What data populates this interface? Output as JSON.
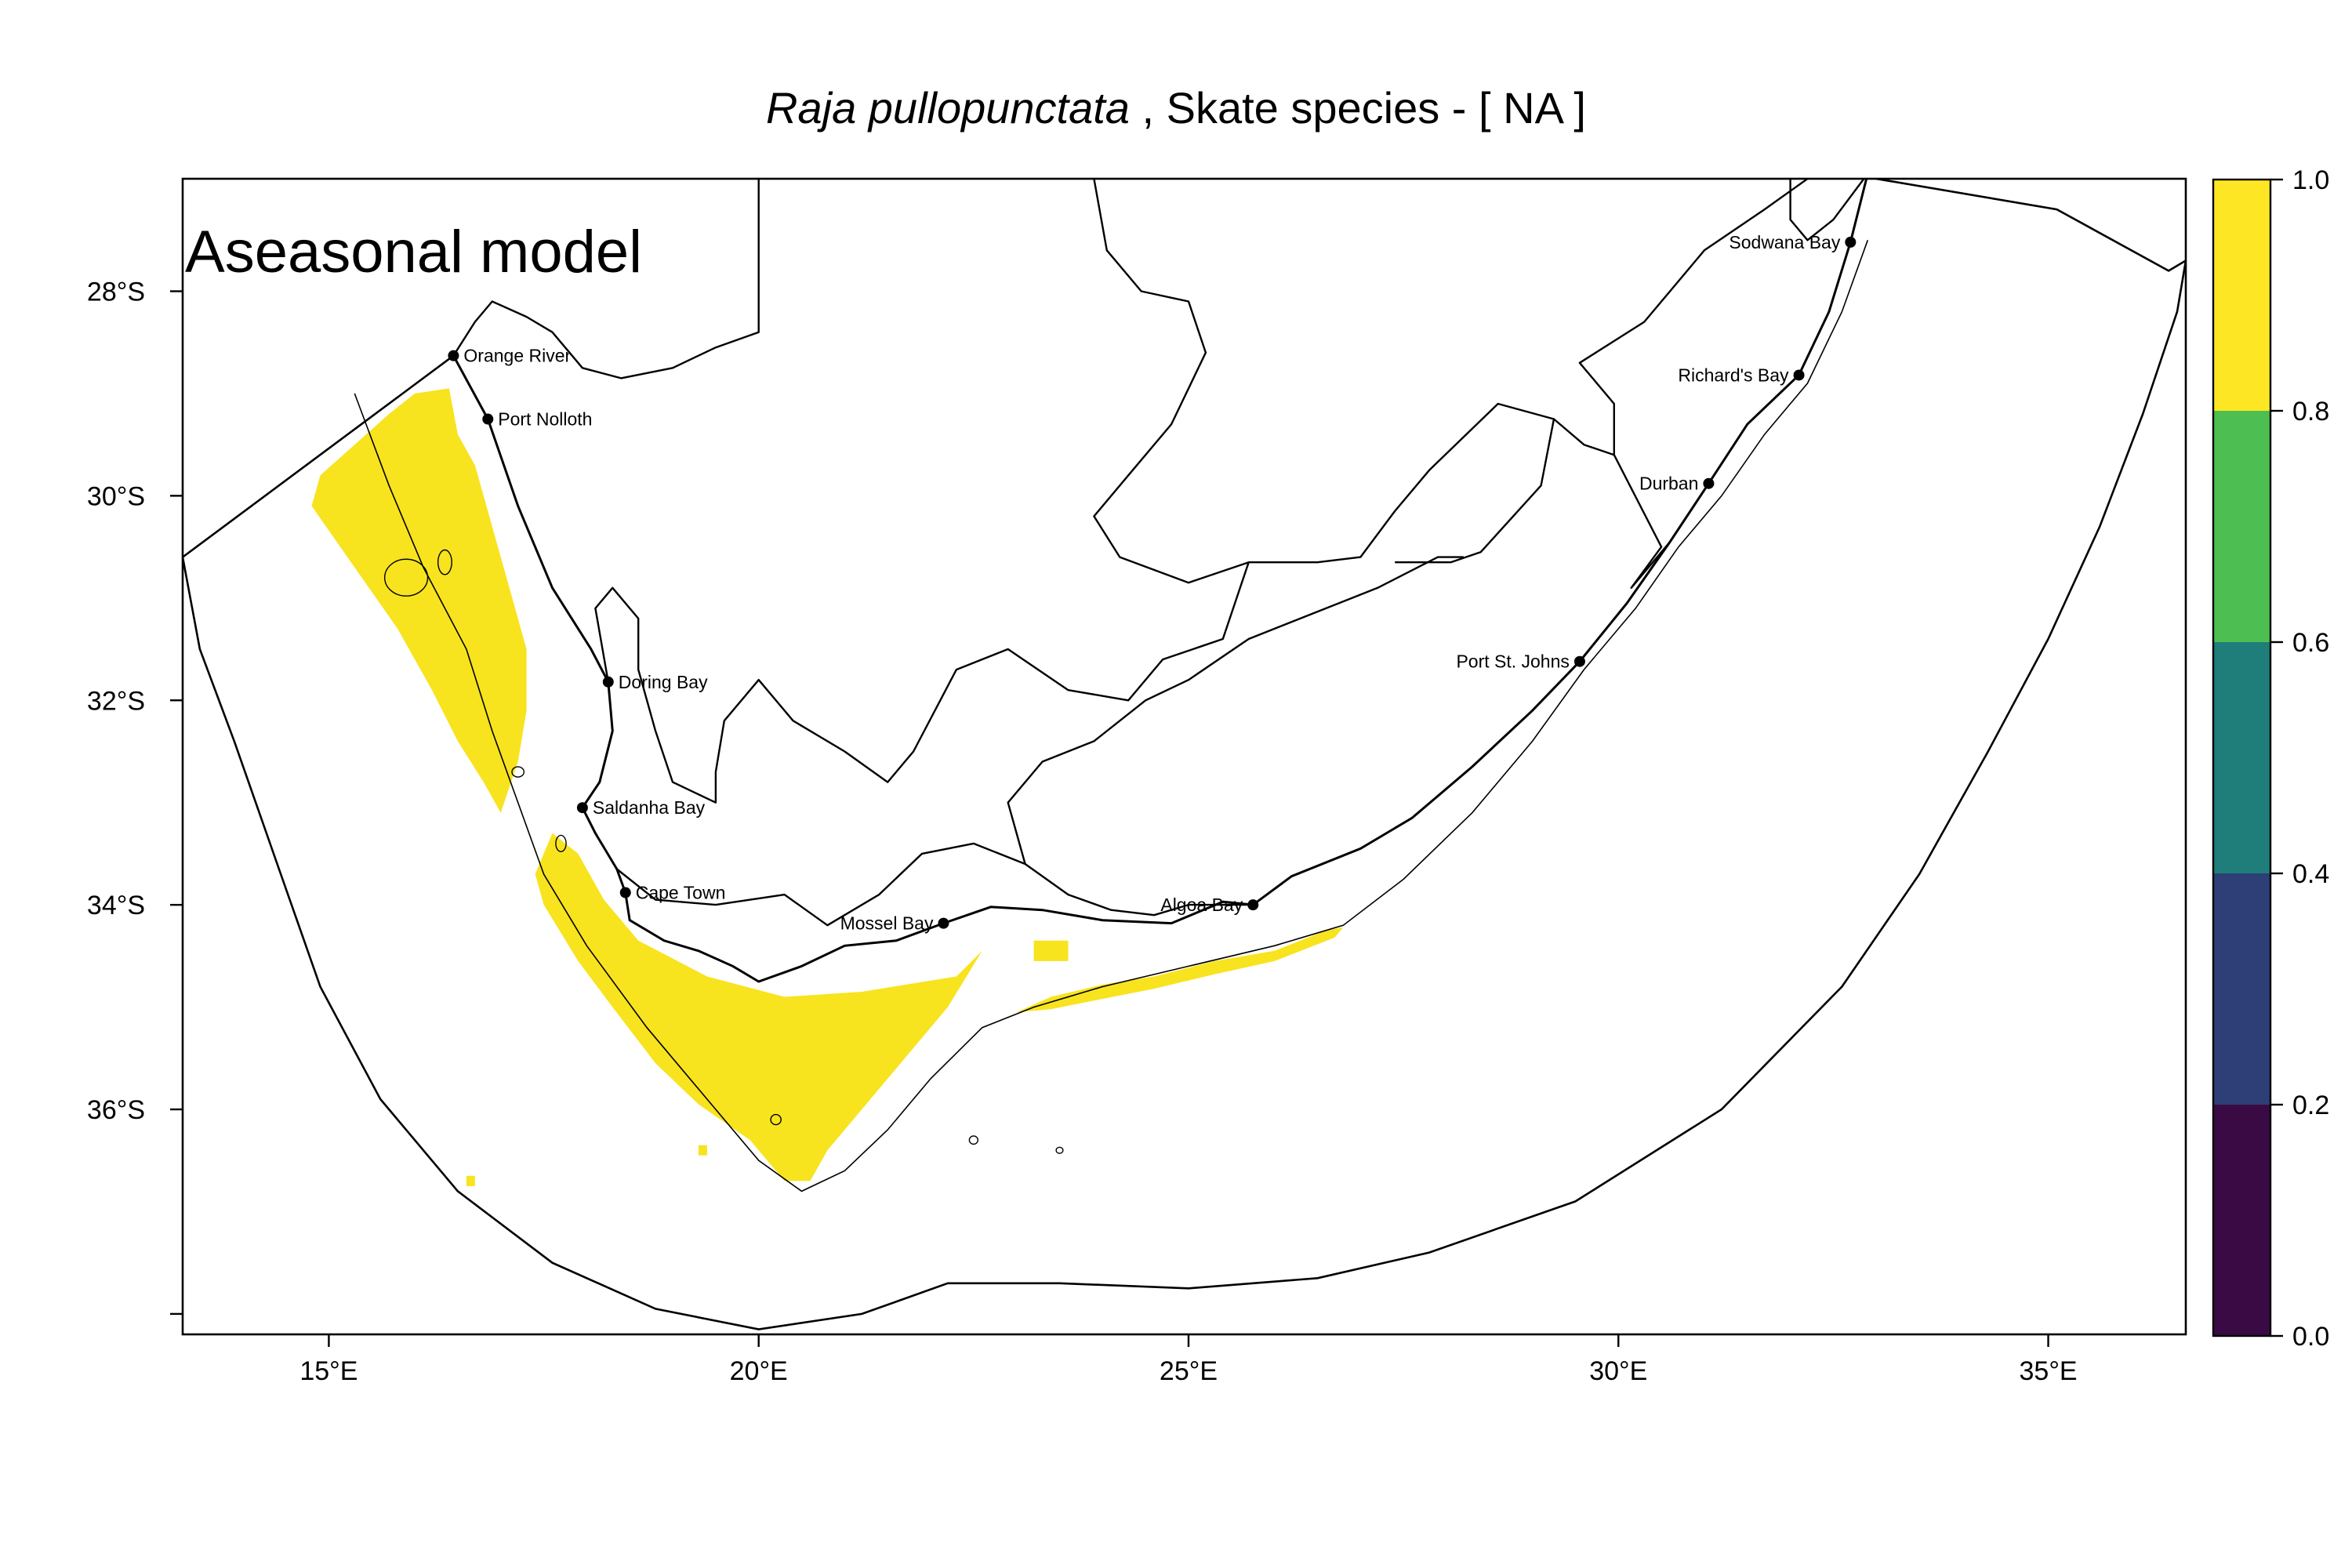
{
  "title": {
    "species": "Raja pullopunctata",
    "suffix": " , Skate species  - [ NA ]"
  },
  "overlay_label": "Aseasonal model",
  "map": {
    "lon_range": [
      13.3,
      36.6
    ],
    "lat_range": [
      -38.2,
      -26.9
    ],
    "x_ticks": [
      {
        "value": 15,
        "label": "15°E"
      },
      {
        "value": 20,
        "label": "20°E"
      },
      {
        "value": 25,
        "label": "25°E"
      },
      {
        "value": 30,
        "label": "30°E"
      },
      {
        "value": 35,
        "label": "35°E"
      }
    ],
    "y_ticks": [
      {
        "value": -28,
        "label": "28°S"
      },
      {
        "value": -30,
        "label": "30°S"
      },
      {
        "value": -32,
        "label": "32°S"
      },
      {
        "value": -34,
        "label": "34°S"
      },
      {
        "value": -36,
        "label": "36°S"
      },
      {
        "value": -38,
        "label": ""
      }
    ],
    "places": [
      {
        "name": "Orange River",
        "lon": 16.45,
        "lat": -28.63,
        "anchor": "start"
      },
      {
        "name": "Port Nolloth",
        "lon": 16.85,
        "lat": -29.25,
        "anchor": "start"
      },
      {
        "name": "Doring Bay",
        "lon": 18.25,
        "lat": -31.82,
        "anchor": "start"
      },
      {
        "name": "Saldanha Bay",
        "lon": 17.95,
        "lat": -33.05,
        "anchor": "start"
      },
      {
        "name": "Cape Town",
        "lon": 18.45,
        "lat": -33.88,
        "anchor": "start"
      },
      {
        "name": "Mossel Bay",
        "lon": 22.15,
        "lat": -34.18,
        "anchor": "end"
      },
      {
        "name": "Algoa Bay",
        "lon": 25.75,
        "lat": -34.0,
        "anchor": "end"
      },
      {
        "name": "Port St. Johns",
        "lon": 29.55,
        "lat": -31.62,
        "anchor": "end"
      },
      {
        "name": "Durban",
        "lon": 31.05,
        "lat": -29.88,
        "anchor": "end"
      },
      {
        "name": "Richard's Bay",
        "lon": 32.1,
        "lat": -28.82,
        "anchor": "end"
      },
      {
        "name": "Sodwana Bay",
        "lon": 32.7,
        "lat": -27.52,
        "anchor": "end"
      }
    ],
    "probability_regions": [
      {
        "name": "west-coast-shelf-patch",
        "value": 0.9,
        "polygon": [
          [
            16.0,
            -29.0
          ],
          [
            16.4,
            -28.95
          ],
          [
            16.5,
            -29.4
          ],
          [
            16.7,
            -29.7
          ],
          [
            16.9,
            -30.3
          ],
          [
            17.1,
            -30.9
          ],
          [
            17.3,
            -31.5
          ],
          [
            17.3,
            -32.1
          ],
          [
            17.2,
            -32.6
          ],
          [
            17.0,
            -33.1
          ],
          [
            16.8,
            -32.8
          ],
          [
            16.5,
            -32.4
          ],
          [
            16.2,
            -31.9
          ],
          [
            15.8,
            -31.3
          ],
          [
            15.3,
            -30.7
          ],
          [
            14.8,
            -30.1
          ],
          [
            14.9,
            -29.8
          ],
          [
            15.3,
            -29.5
          ],
          [
            15.7,
            -29.2
          ]
        ]
      },
      {
        "name": "cape-agulhas-shelf-patch",
        "value": 0.9,
        "polygon": [
          [
            17.6,
            -33.3
          ],
          [
            17.9,
            -33.5
          ],
          [
            18.2,
            -33.95
          ],
          [
            18.6,
            -34.35
          ],
          [
            19.4,
            -34.7
          ],
          [
            20.3,
            -34.9
          ],
          [
            21.2,
            -34.85
          ],
          [
            22.3,
            -34.7
          ],
          [
            22.6,
            -34.45
          ],
          [
            22.2,
            -35.0
          ],
          [
            21.7,
            -35.5
          ],
          [
            21.2,
            -36.0
          ],
          [
            20.8,
            -36.4
          ],
          [
            20.6,
            -36.7
          ],
          [
            20.3,
            -36.7
          ],
          [
            19.9,
            -36.3
          ],
          [
            19.3,
            -35.95
          ],
          [
            18.8,
            -35.55
          ],
          [
            18.3,
            -35.0
          ],
          [
            17.9,
            -34.55
          ],
          [
            17.5,
            -34.0
          ],
          [
            17.4,
            -33.7
          ]
        ]
      },
      {
        "name": "agulhas-bank-edge-patch",
        "value": 0.9,
        "polygon": [
          [
            23.0,
            -35.05
          ],
          [
            23.4,
            -34.9
          ],
          [
            24.0,
            -34.78
          ],
          [
            24.6,
            -34.7
          ],
          [
            25.3,
            -34.55
          ],
          [
            26.0,
            -34.45
          ],
          [
            26.6,
            -34.25
          ],
          [
            26.8,
            -34.22
          ],
          [
            26.7,
            -34.32
          ],
          [
            26.0,
            -34.55
          ],
          [
            25.3,
            -34.68
          ],
          [
            24.6,
            -34.82
          ],
          [
            24.0,
            -34.92
          ],
          [
            23.4,
            -35.02
          ]
        ]
      },
      {
        "name": "bank-speck-1",
        "value": 0.9,
        "polygon": [
          [
            23.2,
            -34.35
          ],
          [
            23.6,
            -34.35
          ],
          [
            23.6,
            -34.55
          ],
          [
            23.2,
            -34.55
          ]
        ]
      },
      {
        "name": "bank-speck-2",
        "value": 0.9,
        "polygon": [
          [
            19.3,
            -36.35
          ],
          [
            19.4,
            -36.35
          ],
          [
            19.4,
            -36.45
          ],
          [
            19.3,
            -36.45
          ]
        ]
      },
      {
        "name": "bank-speck-3",
        "value": 0.9,
        "polygon": [
          [
            16.6,
            -36.65
          ],
          [
            16.7,
            -36.65
          ],
          [
            16.7,
            -36.75
          ],
          [
            16.6,
            -36.75
          ]
        ]
      }
    ],
    "coastline": [
      [
        16.45,
        -28.63
      ],
      [
        16.85,
        -29.25
      ],
      [
        17.2,
        -30.1
      ],
      [
        17.6,
        -30.9
      ],
      [
        18.05,
        -31.5
      ],
      [
        18.25,
        -31.82
      ],
      [
        18.3,
        -32.3
      ],
      [
        18.15,
        -32.8
      ],
      [
        17.95,
        -33.05
      ],
      [
        18.1,
        -33.3
      ],
      [
        18.35,
        -33.65
      ],
      [
        18.45,
        -33.88
      ],
      [
        18.5,
        -34.15
      ],
      [
        18.9,
        -34.35
      ],
      [
        19.3,
        -34.45
      ],
      [
        19.7,
        -34.6
      ],
      [
        20.0,
        -34.75
      ],
      [
        20.5,
        -34.6
      ],
      [
        21.0,
        -34.4
      ],
      [
        21.6,
        -34.35
      ],
      [
        22.15,
        -34.18
      ],
      [
        22.7,
        -34.02
      ],
      [
        23.3,
        -34.05
      ],
      [
        24.0,
        -34.15
      ],
      [
        24.8,
        -34.18
      ],
      [
        25.4,
        -33.97
      ],
      [
        25.75,
        -34.0
      ],
      [
        26.2,
        -33.72
      ],
      [
        27.0,
        -33.45
      ],
      [
        27.6,
        -33.15
      ],
      [
        28.3,
        -32.65
      ],
      [
        29.0,
        -32.1
      ],
      [
        29.55,
        -31.62
      ],
      [
        30.1,
        -31.05
      ],
      [
        30.6,
        -30.45
      ],
      [
        31.05,
        -29.88
      ],
      [
        31.5,
        -29.3
      ],
      [
        32.1,
        -28.82
      ],
      [
        32.45,
        -28.2
      ],
      [
        32.7,
        -27.52
      ],
      [
        32.9,
        -26.85
      ]
    ],
    "shelf_edge_west": [
      [
        15.3,
        -29.0
      ],
      [
        15.7,
        -29.9
      ],
      [
        16.1,
        -30.7
      ],
      [
        16.6,
        -31.5
      ],
      [
        16.9,
        -32.3
      ],
      [
        17.2,
        -33.0
      ],
      [
        17.5,
        -33.7
      ],
      [
        18.0,
        -34.4
      ],
      [
        18.7,
        -35.2
      ],
      [
        19.4,
        -35.9
      ],
      [
        20.0,
        -36.5
      ],
      [
        20.5,
        -36.8
      ],
      [
        21.0,
        -36.6
      ],
      [
        21.5,
        -36.2
      ],
      [
        22.0,
        -35.7
      ],
      [
        22.6,
        -35.2
      ],
      [
        23.2,
        -35.0
      ],
      [
        24.0,
        -34.8
      ],
      [
        25.0,
        -34.6
      ],
      [
        26.0,
        -34.4
      ],
      [
        26.8,
        -34.2
      ],
      [
        27.5,
        -33.75
      ],
      [
        28.3,
        -33.1
      ],
      [
        29.0,
        -32.4
      ],
      [
        29.6,
        -31.7
      ],
      [
        30.2,
        -31.1
      ],
      [
        30.7,
        -30.5
      ],
      [
        31.2,
        -30.0
      ],
      [
        31.7,
        -29.4
      ],
      [
        32.2,
        -28.9
      ],
      [
        32.6,
        -28.2
      ],
      [
        32.9,
        -27.5
      ]
    ],
    "eez_boundary": [
      [
        13.3,
        -30.6
      ],
      [
        16.45,
        -28.63
      ],
      [
        13.3,
        -30.6
      ],
      [
        13.5,
        -31.5
      ],
      [
        13.9,
        -32.4
      ],
      [
        14.4,
        -33.6
      ],
      [
        14.9,
        -34.8
      ],
      [
        15.6,
        -35.9
      ],
      [
        16.5,
        -36.8
      ],
      [
        17.6,
        -37.5
      ],
      [
        18.8,
        -37.95
      ],
      [
        20.0,
        -38.15
      ],
      [
        21.2,
        -38.0
      ],
      [
        22.2,
        -37.7
      ],
      [
        23.5,
        -37.7
      ],
      [
        25.0,
        -37.75
      ],
      [
        26.5,
        -37.65
      ],
      [
        27.8,
        -37.4
      ],
      [
        29.5,
        -36.9
      ],
      [
        31.2,
        -36.0
      ],
      [
        32.6,
        -34.8
      ],
      [
        33.5,
        -33.7
      ],
      [
        34.3,
        -32.5
      ],
      [
        35.0,
        -31.4
      ],
      [
        35.6,
        -30.3
      ],
      [
        36.1,
        -29.2
      ],
      [
        36.5,
        -28.2
      ],
      [
        36.6,
        -27.7
      ],
      [
        36.4,
        -27.8
      ],
      [
        35.1,
        -27.2
      ],
      [
        33.0,
        -26.9
      ],
      [
        32.9,
        -26.85
      ]
    ],
    "borders": [
      [
        [
          16.45,
          -28.63
        ],
        [
          16.7,
          -28.3
        ],
        [
          16.9,
          -28.1
        ],
        [
          17.3,
          -28.25
        ],
        [
          17.6,
          -28.4
        ],
        [
          17.95,
          -28.75
        ],
        [
          18.4,
          -28.85
        ],
        [
          19.0,
          -28.75
        ],
        [
          19.5,
          -28.55
        ],
        [
          20.0,
          -28.4
        ],
        [
          20.0,
          -26.9
        ]
      ],
      [
        [
          23.9,
          -26.9
        ],
        [
          24.05,
          -27.6
        ],
        [
          24.45,
          -28.0
        ],
        [
          25.0,
          -28.1
        ],
        [
          25.2,
          -28.6
        ],
        [
          24.8,
          -29.3
        ],
        [
          24.3,
          -29.8
        ],
        [
          23.9,
          -30.2
        ],
        [
          24.2,
          -30.6
        ],
        [
          25.0,
          -30.85
        ],
        [
          25.7,
          -30.65
        ],
        [
          26.5,
          -30.65
        ],
        [
          27.0,
          -30.6
        ],
        [
          27.4,
          -30.15
        ],
        [
          27.8,
          -29.75
        ],
        [
          28.6,
          -29.1
        ],
        [
          29.25,
          -29.25
        ],
        [
          29.1,
          -29.9
        ],
        [
          28.4,
          -30.55
        ],
        [
          28.05,
          -30.65
        ],
        [
          27.4,
          -30.65
        ]
      ],
      [
        [
          25.7,
          -30.65
        ],
        [
          25.4,
          -31.4
        ],
        [
          24.7,
          -31.6
        ],
        [
          24.3,
          -32.0
        ],
        [
          23.6,
          -31.9
        ],
        [
          22.9,
          -31.5
        ],
        [
          22.3,
          -31.7
        ],
        [
          21.8,
          -32.5
        ],
        [
          21.5,
          -32.8
        ],
        [
          21.0,
          -32.5
        ],
        [
          20.4,
          -32.2
        ],
        [
          20.0,
          -31.8
        ],
        [
          19.6,
          -32.2
        ],
        [
          19.5,
          -32.7
        ],
        [
          19.5,
          -33.0
        ],
        [
          19.0,
          -32.8
        ],
        [
          18.8,
          -32.3
        ],
        [
          18.6,
          -31.7
        ],
        [
          18.6,
          -31.2
        ],
        [
          18.3,
          -30.9
        ],
        [
          18.1,
          -31.1
        ],
        [
          18.25,
          -31.82
        ]
      ],
      [
        [
          18.35,
          -33.65
        ],
        [
          18.8,
          -33.95
        ],
        [
          19.5,
          -34.0
        ],
        [
          20.3,
          -33.9
        ],
        [
          20.8,
          -34.2
        ],
        [
          21.4,
          -33.9
        ],
        [
          21.9,
          -33.5
        ],
        [
          22.5,
          -33.4
        ],
        [
          23.1,
          -33.6
        ],
        [
          23.6,
          -33.9
        ],
        [
          24.1,
          -34.05
        ],
        [
          24.6,
          -34.1
        ],
        [
          25.0,
          -34.0
        ],
        [
          25.75,
          -34.0
        ]
      ],
      [
        [
          23.1,
          -33.6
        ],
        [
          22.9,
          -33.0
        ],
        [
          23.3,
          -32.6
        ],
        [
          23.9,
          -32.4
        ],
        [
          24.5,
          -32.0
        ],
        [
          25.0,
          -31.8
        ],
        [
          25.7,
          -31.4
        ],
        [
          26.3,
          -31.2
        ],
        [
          27.2,
          -30.9
        ],
        [
          27.9,
          -30.6
        ],
        [
          28.2,
          -30.6
        ]
      ],
      [
        [
          29.25,
          -29.25
        ],
        [
          29.6,
          -29.5
        ],
        [
          29.95,
          -29.6
        ],
        [
          30.5,
          -30.5
        ],
        [
          30.15,
          -30.9
        ],
        [
          30.6,
          -30.45
        ]
      ],
      [
        [
          29.95,
          -29.6
        ],
        [
          29.95,
          -29.1
        ],
        [
          29.55,
          -28.7
        ],
        [
          30.3,
          -28.3
        ],
        [
          30.6,
          -28.0
        ],
        [
          31.0,
          -27.6
        ],
        [
          31.7,
          -27.2
        ],
        [
          32.2,
          -26.9
        ]
      ],
      [
        [
          32.0,
          -26.9
        ],
        [
          32.0,
          -27.3
        ],
        [
          32.2,
          -27.5
        ],
        [
          32.5,
          -27.3
        ],
        [
          32.9,
          -26.85
        ]
      ]
    ],
    "islands": [
      {
        "lon": 15.9,
        "lat": -30.8,
        "rx": 0.25,
        "ry": 0.18
      },
      {
        "lon": 16.35,
        "lat": -30.65,
        "rx": 0.08,
        "ry": 0.12
      },
      {
        "lon": 17.2,
        "lat": -32.7,
        "rx": 0.07,
        "ry": 0.05
      },
      {
        "lon": 17.7,
        "lat": -33.4,
        "rx": 0.06,
        "ry": 0.08
      },
      {
        "lon": 20.2,
        "lat": -36.1,
        "rx": 0.06,
        "ry": 0.05
      },
      {
        "lon": 22.5,
        "lat": -36.3,
        "rx": 0.05,
        "ry": 0.04
      },
      {
        "lon": 23.5,
        "lat": -36.4,
        "rx": 0.04,
        "ry": 0.03
      }
    ]
  },
  "colorbar": {
    "colors": [
      "#3a0a44",
      "#2e3e77",
      "#1f7e7a",
      "#4dbf52",
      "#fde724"
    ],
    "ticks": [
      "0.0",
      "0.2",
      "0.4",
      "0.6",
      "0.8",
      "1.0"
    ]
  },
  "colors": {
    "presence": "#f8e31f",
    "line": "#000000"
  }
}
